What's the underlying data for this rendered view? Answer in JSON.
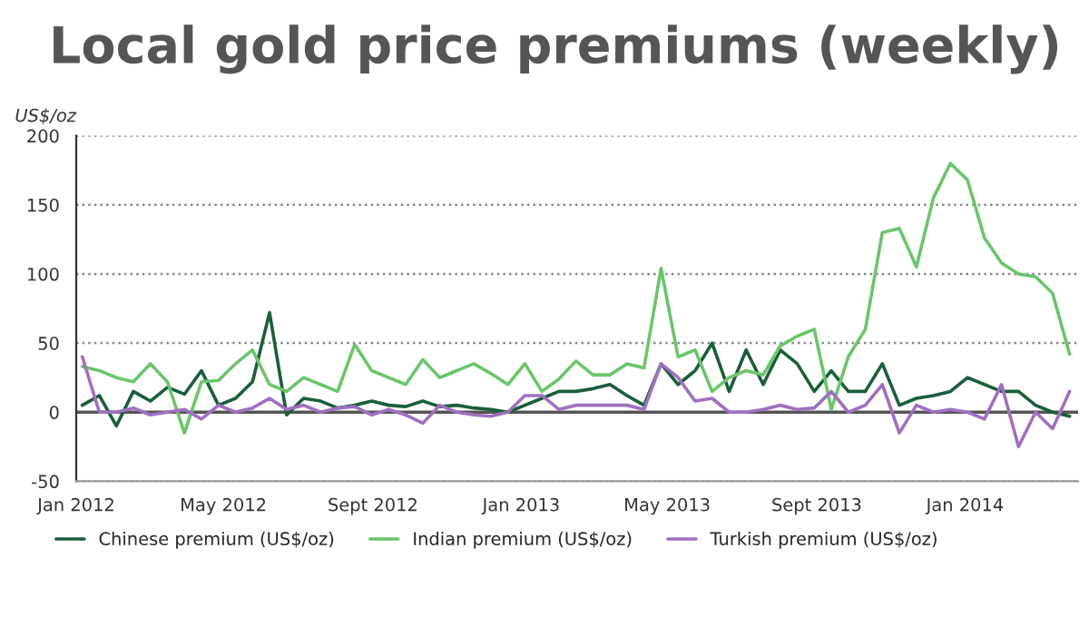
{
  "chart_data": {
    "type": "line",
    "title": "Local gold price premiums (weekly)",
    "ylabel": "US$/oz",
    "x": [
      "2012-01-06",
      "2012-01-20",
      "2012-02-03",
      "2012-02-17",
      "2012-03-02",
      "2012-03-16",
      "2012-03-30",
      "2012-04-13",
      "2012-04-27",
      "2012-05-11",
      "2012-05-25",
      "2012-06-08",
      "2012-06-22",
      "2012-07-06",
      "2012-07-20",
      "2012-08-03",
      "2012-08-17",
      "2012-08-31",
      "2012-09-14",
      "2012-09-28",
      "2012-10-12",
      "2012-10-26",
      "2012-11-09",
      "2012-11-23",
      "2012-12-07",
      "2012-12-21",
      "2013-01-04",
      "2013-01-18",
      "2013-02-01",
      "2013-02-15",
      "2013-03-01",
      "2013-03-15",
      "2013-03-29",
      "2013-04-12",
      "2013-04-26",
      "2013-05-10",
      "2013-05-24",
      "2013-06-07",
      "2013-06-21",
      "2013-07-05",
      "2013-07-19",
      "2013-08-02",
      "2013-08-16",
      "2013-08-30",
      "2013-09-13",
      "2013-09-27",
      "2013-10-11",
      "2013-10-25",
      "2013-11-08",
      "2013-11-22",
      "2013-12-06",
      "2013-12-20",
      "2014-01-03",
      "2014-01-17",
      "2014-01-31",
      "2014-02-14",
      "2014-02-28",
      "2014-03-14",
      "2014-03-28"
    ],
    "series": [
      {
        "name": "Chinese premium (US$/oz)",
        "color": "#1a5e3a",
        "values": [
          5,
          12,
          -10,
          15,
          8,
          18,
          13,
          30,
          5,
          10,
          22,
          72,
          -2,
          10,
          8,
          3,
          5,
          8,
          5,
          4,
          8,
          4,
          5,
          3,
          2,
          0,
          5,
          10,
          15,
          15,
          17,
          20,
          12,
          5,
          35,
          20,
          30,
          50,
          15,
          45,
          20,
          45,
          35,
          15,
          30,
          15,
          15,
          35,
          5,
          10,
          12,
          15,
          25,
          20,
          15,
          15,
          5,
          0,
          -3
        ]
      },
      {
        "name": "Indian premium (US$/oz)",
        "color": "#6cc46c",
        "values": [
          33,
          30,
          25,
          22,
          35,
          22,
          -15,
          22,
          23,
          35,
          45,
          20,
          15,
          25,
          20,
          15,
          49,
          30,
          25,
          20,
          38,
          25,
          30,
          35,
          28,
          20,
          35,
          15,
          24,
          37,
          27,
          27,
          35,
          32,
          104,
          40,
          45,
          15,
          25,
          30,
          27,
          48,
          55,
          60,
          2,
          40,
          60,
          130,
          133,
          105,
          155,
          180,
          168,
          126,
          108,
          100,
          98,
          86,
          42
        ]
      },
      {
        "name": "Turkish premium (US$/oz)",
        "color": "#a070c0",
        "values": [
          40,
          0,
          0,
          3,
          -2,
          0,
          2,
          -5,
          5,
          0,
          3,
          10,
          2,
          5,
          0,
          3,
          4,
          -2,
          2,
          -2,
          -8,
          5,
          0,
          -2,
          -3,
          0,
          12,
          12,
          2,
          5,
          5,
          5,
          5,
          2,
          35,
          25,
          8,
          10,
          0,
          0,
          2,
          5,
          2,
          3,
          15,
          0,
          5,
          20,
          -15,
          5,
          0,
          2,
          0,
          -5,
          20,
          -25,
          0,
          -12,
          15
        ]
      }
    ],
    "xlim": [
      "2012-01-01",
      "2014-04-04"
    ],
    "xticks": [
      {
        "value": "2012-01-01",
        "label": "Jan 2012"
      },
      {
        "value": "2012-05-01",
        "label": "May 2012"
      },
      {
        "value": "2012-09-01",
        "label": "Sept 2012"
      },
      {
        "value": "2013-01-01",
        "label": "Jan 2013"
      },
      {
        "value": "2013-05-01",
        "label": "May 2013"
      },
      {
        "value": "2013-09-01",
        "label": "Sept 2013"
      },
      {
        "value": "2014-01-01",
        "label": "Jan 2014"
      }
    ],
    "ylim": [
      -50,
      200
    ],
    "yticks": [
      -50,
      0,
      50,
      100,
      150,
      200
    ],
    "ref_lines": [
      {
        "axis": "y",
        "value": 0,
        "color": "#555555"
      }
    ],
    "grid": "y",
    "legend": "bottom",
    "marker": "none",
    "line_style": "solid"
  }
}
